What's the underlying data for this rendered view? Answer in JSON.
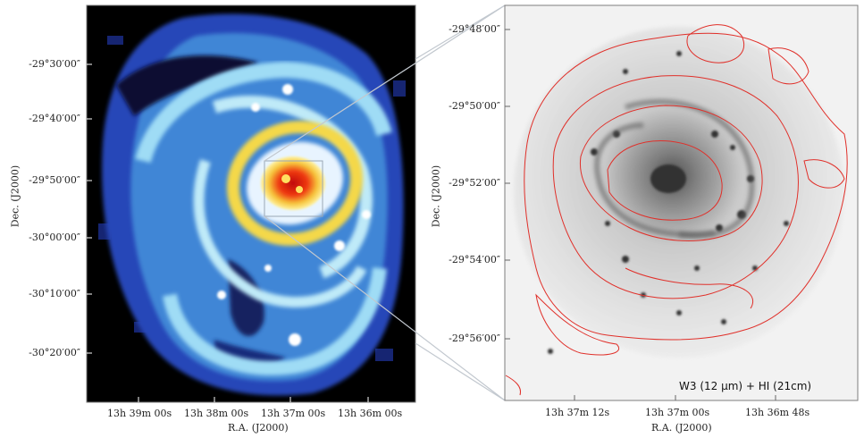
{
  "left_panel": {
    "dec_ticks": [
      "-29°30′00″",
      "-29°40′00″",
      "-29°50′00″",
      "-30°00′00″",
      "-30°10′00″",
      "-30°20′00″"
    ],
    "ra_ticks": [
      "13h 39m 00s",
      "13h 38m 00s",
      "13h 37m 00s",
      "13h 36m 00s"
    ],
    "ylabel": "Dec. (J2000)",
    "xlabel": "R.A. (J2000)"
  },
  "right_panel": {
    "dec_ticks": [
      "-29°48′00″",
      "-29°50′00″",
      "-29°52′00″",
      "-29°54′00″",
      "-29°56′00″"
    ],
    "ra_ticks": [
      "13h 37m 12s",
      "13h 37m 00s",
      "13h 36m 48s"
    ],
    "ylabel": "Dec. (J2000)",
    "xlabel": "R.A. (J2000)",
    "annotation": "W3 (12 μm) + HI (21cm)"
  },
  "colors": {
    "colormap_low": "#1a2a8a",
    "colormap_mid": "#6ec8f0",
    "colormap_high": "#d81e0e",
    "contour": "#e0302a"
  }
}
